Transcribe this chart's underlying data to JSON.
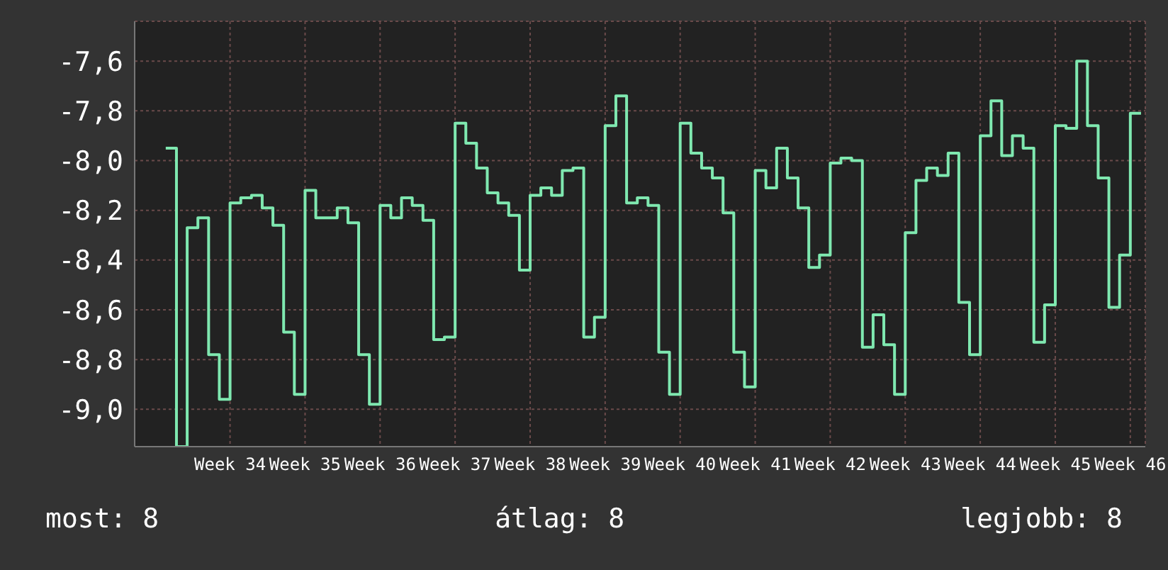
{
  "chart_data": {
    "type": "step",
    "ylim": [
      -9.15,
      -7.44
    ],
    "categories": [
      null,
      null,
      null,
      null,
      null,
      null,
      "Week 34",
      null,
      null,
      null,
      null,
      null,
      null,
      "Week 35",
      null,
      null,
      null,
      null,
      null,
      null,
      "Week 36",
      null,
      null,
      null,
      null,
      null,
      null,
      "Week 37",
      null,
      null,
      null,
      null,
      null,
      null,
      "Week 38",
      null,
      null,
      null,
      null,
      null,
      null,
      "Week 39",
      null,
      null,
      null,
      null,
      null,
      null,
      "Week 40",
      null,
      null,
      null,
      null,
      null,
      null,
      "Week 41",
      null,
      null,
      null,
      null,
      null,
      null,
      "Week 42",
      null,
      null,
      null,
      null,
      null,
      null,
      "Week 43",
      null,
      null,
      null,
      null,
      null,
      null,
      "Week 44",
      null,
      null,
      null,
      null,
      null,
      null,
      "Week 45",
      null,
      null,
      null,
      null,
      null,
      null,
      "Week 46",
      null
    ],
    "yticks": [
      {
        "value": -9,
        "label": "-9,0"
      },
      {
        "value": -8.8,
        "label": "-8,8"
      },
      {
        "value": -8.6,
        "label": "-8,6"
      },
      {
        "value": -8.4,
        "label": "-8,4"
      },
      {
        "value": -8.2,
        "label": "-8,2"
      },
      {
        "value": -8,
        "label": "-8,0"
      },
      {
        "value": -7.8,
        "label": "-7,8"
      },
      {
        "value": -7.6,
        "label": "-7,6"
      }
    ],
    "grid": true,
    "marker": "none",
    "line_style": "solid",
    "series": [
      {
        "color": "#7fe8b0",
        "values": [
          -7.95,
          -9.15,
          -8.27,
          -8.23,
          -8.78,
          -8.96,
          -8.17,
          -8.15,
          -8.14,
          -8.19,
          -8.26,
          -8.69,
          -8.94,
          -8.12,
          -8.23,
          -8.23,
          -8.19,
          -8.25,
          -8.78,
          -8.98,
          -8.18,
          -8.23,
          -8.15,
          -8.18,
          -8.24,
          -8.72,
          -8.71,
          -7.85,
          -7.93,
          -8.03,
          -8.13,
          -8.17,
          -8.22,
          -8.44,
          -8.14,
          -8.11,
          -8.14,
          -8.04,
          -8.03,
          -8.71,
          -8.63,
          -7.86,
          -7.74,
          -8.17,
          -8.15,
          -8.18,
          -8.77,
          -8.94,
          -7.85,
          -7.97,
          -8.03,
          -8.07,
          -8.21,
          -8.77,
          -8.91,
          -8.04,
          -8.11,
          -7.95,
          -8.07,
          -8.19,
          -8.43,
          -8.38,
          -8.01,
          -7.99,
          -8.0,
          -8.75,
          -8.62,
          -8.74,
          -8.94,
          -8.29,
          -8.08,
          -8.03,
          -8.06,
          -7.97,
          -8.57,
          -8.78,
          -7.9,
          -7.76,
          -7.98,
          -7.9,
          -7.95,
          -8.73,
          -8.58,
          -7.86,
          -7.87,
          -7.6,
          -7.86,
          -8.07,
          -8.59,
          -8.38,
          -7.81,
          -7.81
        ]
      }
    ],
    "annotations": [
      "most: 8",
      "átlag: 8",
      "legjobb: 8"
    ]
  }
}
